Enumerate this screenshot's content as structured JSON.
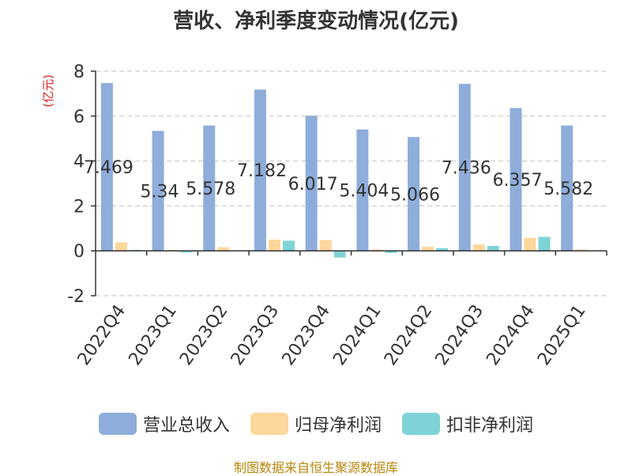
{
  "title": "营收、净利季度变动情况(亿元)",
  "source_note": "制图数据来自恒生聚源数据库",
  "colors": {
    "revenue": "#8eaddb",
    "net_profit": "#fdd79b",
    "deducted_profit": "#7fd3d6",
    "ylabel": "#e02020",
    "axis": "#333333",
    "grid": "#cccccc"
  },
  "chart_data": {
    "type": "bar",
    "title": "营收、净利季度变动情况(亿元)",
    "ylabel": "(亿元)",
    "xlabel": "",
    "ylim": [
      -2,
      8
    ],
    "yticks": [
      8,
      6,
      4,
      2,
      0,
      -2
    ],
    "yticks_labels": [
      "8",
      "6",
      "4",
      "2",
      "0",
      "-2"
    ],
    "grid": true,
    "legend_position": "bottom-center",
    "categories": [
      "2022Q4",
      "2023Q1",
      "2023Q2",
      "2023Q3",
      "2023Q4",
      "2024Q1",
      "2024Q2",
      "2024Q3",
      "2024Q4",
      "2025Q1"
    ],
    "series": [
      {
        "name": "营业总收入",
        "color": "#8eaddb",
        "values": [
          7.469,
          5.34,
          5.578,
          7.182,
          6.017,
          5.404,
          5.066,
          7.436,
          6.357,
          5.582
        ],
        "data_labels": [
          "7.469",
          "5.34",
          "5.578",
          "7.182",
          "6.017",
          "5.404",
          "5.066",
          "7.436",
          "6.357",
          "5.582"
        ]
      },
      {
        "name": "归母净利润",
        "color": "#fdd79b",
        "values": [
          0.38,
          0.04,
          0.16,
          0.5,
          0.48,
          0.06,
          0.18,
          0.28,
          0.58,
          0.06
        ]
      },
      {
        "name": "扣非净利润",
        "color": "#7fd3d6",
        "values": [
          0.04,
          -0.08,
          0.02,
          0.45,
          -0.3,
          -0.1,
          0.12,
          0.22,
          0.62,
          0.01
        ]
      }
    ]
  }
}
